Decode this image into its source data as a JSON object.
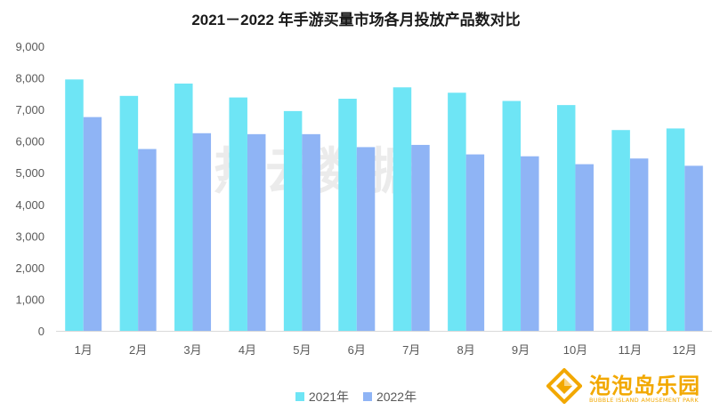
{
  "chart_data": {
    "type": "bar",
    "title": "2021－2022 年手游买量市场各月投放产品数对比",
    "categories": [
      "1月",
      "2月",
      "3月",
      "4月",
      "5月",
      "6月",
      "7月",
      "8月",
      "9月",
      "10月",
      "11月",
      "12月"
    ],
    "series": [
      {
        "name": "2021年",
        "color": "#6ee5f5",
        "values": [
          7950,
          7430,
          7820,
          7380,
          6950,
          7340,
          7700,
          7530,
          7270,
          7140,
          6350,
          6400
        ]
      },
      {
        "name": "2022年",
        "color": "#8fb4f5",
        "values": [
          6760,
          5750,
          6250,
          6220,
          6220,
          5810,
          5880,
          5580,
          5520,
          5270,
          5450,
          5220
        ]
      }
    ],
    "ylim": [
      0,
      9000
    ],
    "ytick_labels": [
      "0",
      "1,000",
      "2,000",
      "3,000",
      "4,000",
      "5,000",
      "6,000",
      "7,000",
      "8,000",
      "9,000"
    ],
    "grid": false,
    "legend_position": "bottom"
  },
  "watermark": {
    "text": "热云数据"
  },
  "brand": {
    "name": "泡泡岛乐园",
    "sub": "BUBBLE ISLAND AMUSEMENT PARK",
    "logo_icon": "diamond-logo-icon",
    "color": "#f2a800"
  }
}
